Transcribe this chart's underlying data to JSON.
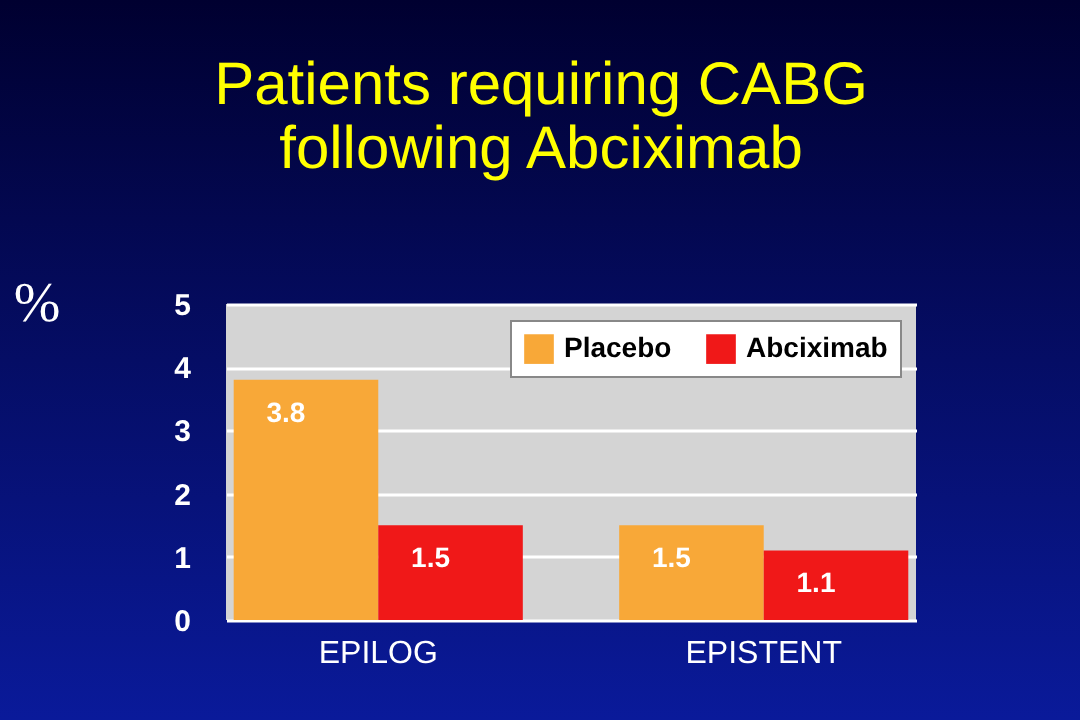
{
  "chart_data": {
    "type": "bar",
    "title": "Patients requiring CABG\nfollowing Abciximab",
    "ylabel": "%",
    "categories": [
      "EPILOG",
      "EPISTENT"
    ],
    "series": [
      {
        "name": "Placebo",
        "color": "#f8a838",
        "values": [
          3.8,
          1.5
        ]
      },
      {
        "name": "Abciximab",
        "color": "#f01818",
        "values": [
          1.5,
          1.1
        ]
      }
    ],
    "ylim": [
      0,
      5
    ],
    "yticks": [
      0,
      1,
      2,
      3,
      4,
      5
    ],
    "grid": "y",
    "legend": "top right",
    "data_labels": true
  }
}
